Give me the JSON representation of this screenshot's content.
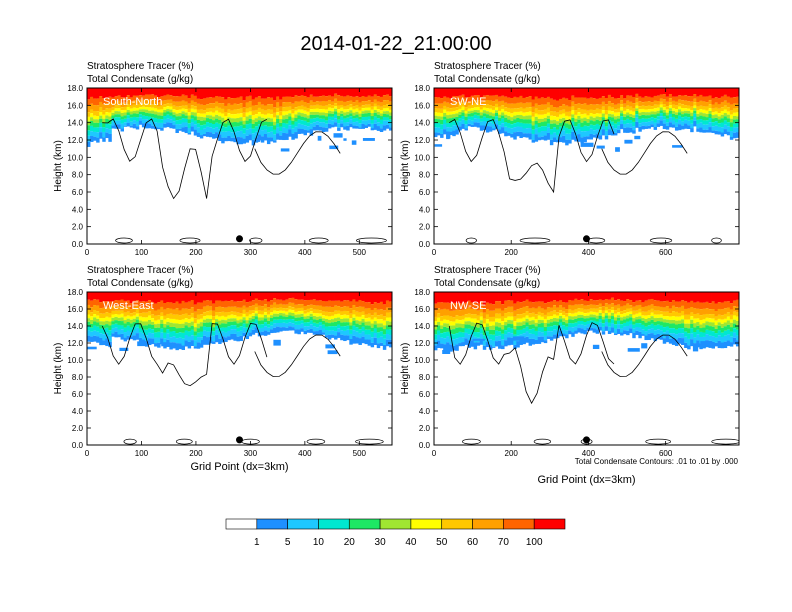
{
  "figure": {
    "title": "2014-01-22_21:00:00",
    "footnote": "Total Condensate Contours: .01 to .01 by .000"
  },
  "chart_data": {
    "type": "heatmap",
    "shared_titles": {
      "line1": "Stratosphere Tracer   (%)",
      "line2": "Total Condensate   (g/kg)"
    },
    "ylabel": "Height (km)",
    "xlabel": "Grid Point (dx=3km)",
    "ylim": [
      0,
      18
    ],
    "yticks": [
      "0.0",
      "2.0",
      "4.0",
      "6.0",
      "8.0",
      "10.0",
      "12.0",
      "14.0",
      "16.0",
      "18.0"
    ],
    "panels": [
      {
        "label": "South-North",
        "xlim": [
          0,
          560
        ],
        "xticks": [
          "0",
          "100",
          "200",
          "300",
          "400",
          "500"
        ],
        "marker_x": 280,
        "show_xlabel": false
      },
      {
        "label": "SW-NE",
        "xlim": [
          0,
          790
        ],
        "xticks": [
          "0",
          "200",
          "400",
          "600"
        ],
        "marker_x": 395,
        "show_xlabel": false
      },
      {
        "label": "West-East",
        "xlim": [
          0,
          560
        ],
        "xticks": [
          "0",
          "100",
          "200",
          "300",
          "400",
          "500"
        ],
        "marker_x": 280,
        "show_xlabel": true
      },
      {
        "label": "NW-SE",
        "xlim": [
          0,
          790
        ],
        "xticks": [
          "0",
          "200",
          "400",
          "600"
        ],
        "marker_x": 395,
        "show_xlabel": true
      }
    ],
    "colorbar": {
      "levels": [
        "1",
        "5",
        "10",
        "20",
        "30",
        "40",
        "50",
        "60",
        "70",
        "100"
      ],
      "colors": [
        "#ffffff",
        "#1e90ff",
        "#1ec8ff",
        "#00e8d0",
        "#1ee864",
        "#a0e632",
        "#ffff00",
        "#ffc800",
        "#ffa000",
        "#ff6400",
        "#ff0000"
      ]
    }
  }
}
